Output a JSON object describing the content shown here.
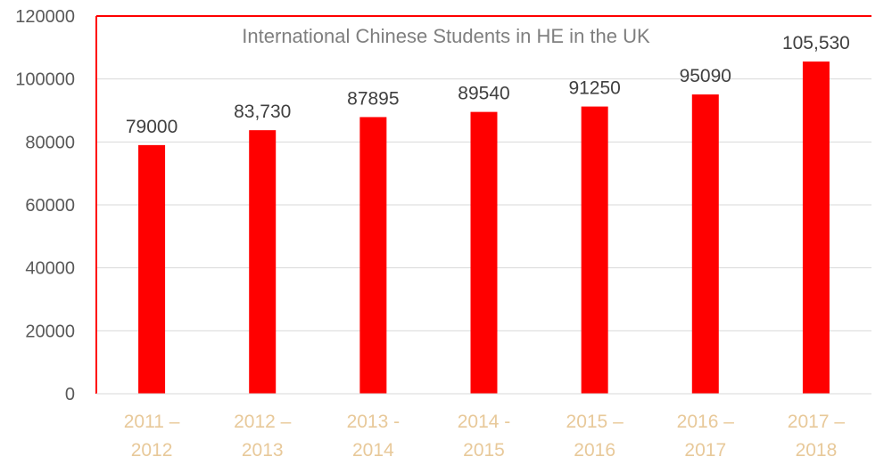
{
  "chart_data": {
    "type": "bar",
    "title": "International Chinese Students in HE in the UK",
    "categories": [
      [
        "2011 –",
        "2012"
      ],
      [
        "2012 –",
        "2013"
      ],
      [
        "2013 -",
        "2014"
      ],
      [
        "2014 -",
        "2015"
      ],
      [
        "2015 –",
        "2016"
      ],
      [
        "2016 –",
        "2017"
      ],
      [
        "2017 –",
        "2018"
      ]
    ],
    "values": [
      79000,
      83730,
      87895,
      89540,
      91250,
      95090,
      105530
    ],
    "data_labels": [
      "79000",
      "83,730",
      "87895",
      "89540",
      "91250",
      "95090",
      "105,530"
    ],
    "ylim": [
      0,
      120000
    ],
    "yticks": [
      0,
      20000,
      40000,
      60000,
      80000,
      100000,
      120000
    ],
    "ytick_labels": [
      "0",
      "20000",
      "40000",
      "60000",
      "80000",
      "100000",
      "120000"
    ],
    "grid": true,
    "colors": {
      "bar": "#ff0000",
      "axis": "#ff0000",
      "grid": "#d9d9d9",
      "category_text": "#e8c99a"
    }
  }
}
